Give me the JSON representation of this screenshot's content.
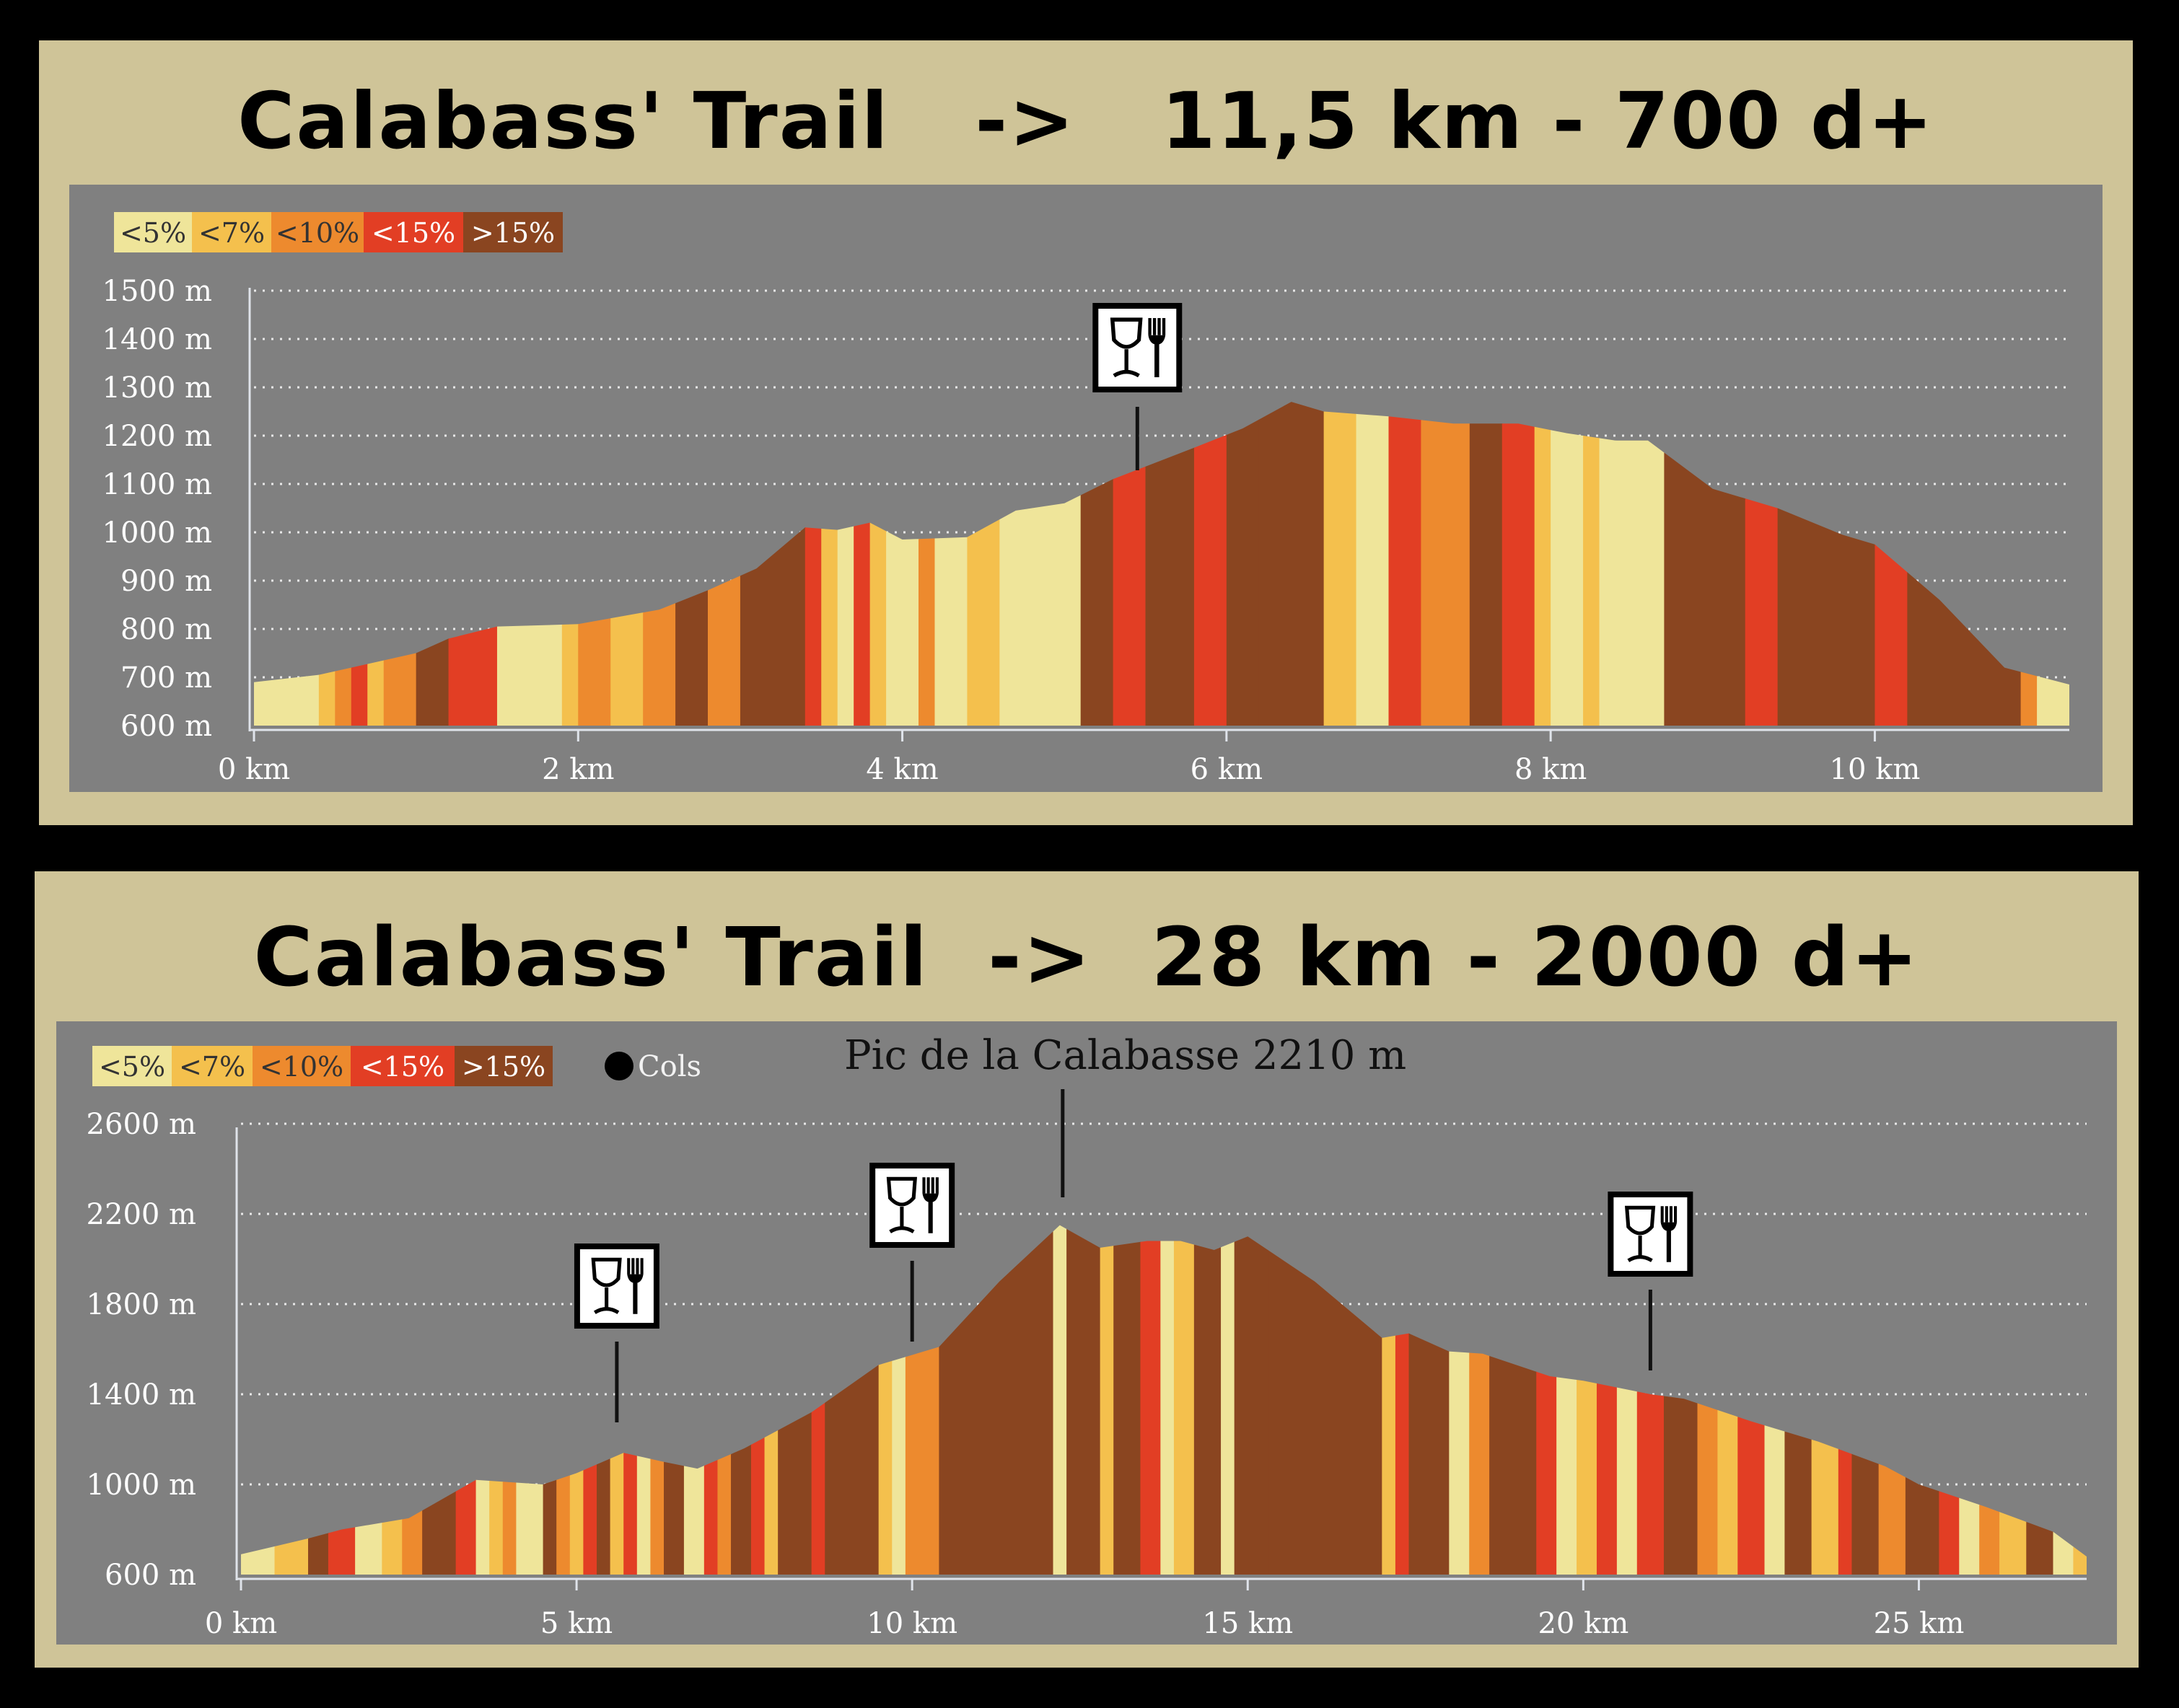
{
  "colors": {
    "lt5": "#efe59a",
    "lt7": "#f4c04d",
    "lt10": "#ed8a2e",
    "lt15": "#e23e24",
    "gt15": "#8a4520",
    "plot_bg": "#808080",
    "frame": "#cfc498"
  },
  "charts": [
    {
      "title": "Calabass' Trail   ->   11,5 km - 700 d+",
      "legend": [
        "<5%",
        "<7%",
        "<10%",
        "<15%",
        ">15%"
      ],
      "cols_label": "",
      "peak_label": "",
      "chart_data": {
        "type": "area",
        "x_unit": "km",
        "xlim": [
          0,
          11.2
        ],
        "ylim": [
          600,
          1500
        ],
        "x_ticks": [
          0,
          2,
          4,
          6,
          8,
          10
        ],
        "x_tick_labels": [
          "0 km",
          "2 km",
          "4 km",
          "6 km",
          "8 km",
          "10 km"
        ],
        "y_ticks": [
          600,
          700,
          800,
          900,
          1000,
          1100,
          1200,
          1300,
          1400,
          1500
        ],
        "y_tick_labels": [
          "600 m",
          "700 m",
          "800 m",
          "900 m",
          "1000 m",
          "1100 m",
          "1200 m",
          "1300 m",
          "1400 m",
          "1500 m"
        ],
        "grid": true,
        "profile": [
          [
            0,
            690
          ],
          [
            0.4,
            705
          ],
          [
            0.6,
            720
          ],
          [
            1.0,
            750
          ],
          [
            1.2,
            780
          ],
          [
            1.5,
            805
          ],
          [
            2.0,
            810
          ],
          [
            2.5,
            840
          ],
          [
            2.8,
            880
          ],
          [
            3.1,
            925
          ],
          [
            3.4,
            1010
          ],
          [
            3.6,
            1005
          ],
          [
            3.8,
            1020
          ],
          [
            4.0,
            985
          ],
          [
            4.4,
            990
          ],
          [
            4.7,
            1045
          ],
          [
            5.0,
            1060
          ],
          [
            5.3,
            1110
          ],
          [
            5.8,
            1175
          ],
          [
            6.1,
            1215
          ],
          [
            6.4,
            1270
          ],
          [
            6.6,
            1250
          ],
          [
            7.0,
            1240
          ],
          [
            7.4,
            1225
          ],
          [
            7.8,
            1225
          ],
          [
            8.1,
            1205
          ],
          [
            8.4,
            1190
          ],
          [
            8.6,
            1190
          ],
          [
            9.0,
            1090
          ],
          [
            9.4,
            1050
          ],
          [
            9.8,
            995
          ],
          [
            10.0,
            975
          ],
          [
            10.4,
            860
          ],
          [
            10.8,
            720
          ],
          [
            11.2,
            685
          ]
        ],
        "slope_segments": [
          [
            0,
            0.4,
            0
          ],
          [
            0.4,
            0.5,
            1
          ],
          [
            0.5,
            0.6,
            2
          ],
          [
            0.6,
            0.7,
            3
          ],
          [
            0.7,
            0.8,
            1
          ],
          [
            0.8,
            1.0,
            2
          ],
          [
            1.0,
            1.2,
            4
          ],
          [
            1.2,
            1.5,
            3
          ],
          [
            1.5,
            1.9,
            0
          ],
          [
            1.9,
            2.0,
            1
          ],
          [
            2.0,
            2.2,
            2
          ],
          [
            2.2,
            2.4,
            1
          ],
          [
            2.4,
            2.6,
            2
          ],
          [
            2.6,
            2.8,
            4
          ],
          [
            2.8,
            3.0,
            2
          ],
          [
            3.0,
            3.4,
            4
          ],
          [
            3.4,
            3.5,
            3
          ],
          [
            3.5,
            3.6,
            1
          ],
          [
            3.6,
            3.7,
            0
          ],
          [
            3.7,
            3.8,
            3
          ],
          [
            3.8,
            3.9,
            1
          ],
          [
            3.9,
            4.1,
            0
          ],
          [
            4.1,
            4.2,
            2
          ],
          [
            4.2,
            4.4,
            0
          ],
          [
            4.4,
            4.6,
            1
          ],
          [
            4.6,
            4.8,
            0
          ],
          [
            4.8,
            5.1,
            0
          ],
          [
            5.1,
            5.3,
            4
          ],
          [
            5.3,
            5.5,
            3
          ],
          [
            5.5,
            5.8,
            4
          ],
          [
            5.8,
            6.0,
            3
          ],
          [
            6.0,
            6.2,
            4
          ],
          [
            6.2,
            6.6,
            4
          ],
          [
            6.6,
            6.8,
            1
          ],
          [
            6.8,
            7.0,
            0
          ],
          [
            7.0,
            7.2,
            3
          ],
          [
            7.2,
            7.5,
            2
          ],
          [
            7.5,
            7.7,
            4
          ],
          [
            7.7,
            7.9,
            3
          ],
          [
            7.9,
            8.0,
            1
          ],
          [
            8.0,
            8.2,
            0
          ],
          [
            8.2,
            8.3,
            1
          ],
          [
            8.3,
            8.4,
            0
          ],
          [
            8.4,
            8.7,
            0
          ],
          [
            8.7,
            9.2,
            4
          ],
          [
            9.2,
            9.4,
            3
          ],
          [
            9.4,
            10.0,
            4
          ],
          [
            10.0,
            10.2,
            3
          ],
          [
            10.2,
            10.9,
            4
          ],
          [
            10.9,
            11.0,
            2
          ],
          [
            11.0,
            11.2,
            0
          ]
        ],
        "food_points": [
          5.45
        ]
      }
    },
    {
      "title": "Calabass' Trail  ->  28 km - 2000 d+",
      "legend": [
        "<5%",
        "<7%",
        "<10%",
        "<15%",
        ">15%"
      ],
      "cols_label": "Cols",
      "peak_label": "Pic de la Calabasse 2210 m",
      "chart_data": {
        "type": "area",
        "x_unit": "km",
        "xlim": [
          0,
          27.5
        ],
        "ylim": [
          600,
          2600
        ],
        "x_ticks": [
          0,
          5,
          10,
          15,
          20,
          25
        ],
        "x_tick_labels": [
          "0 km",
          "5 km",
          "10 km",
          "15 km",
          "20 km",
          "25 km"
        ],
        "y_ticks": [
          600,
          1000,
          1400,
          1800,
          2200,
          2600
        ],
        "y_tick_labels": [
          "600 m",
          "1000 m",
          "1400 m",
          "1800 m",
          "2200 m",
          "2600 m"
        ],
        "grid": true,
        "profile": [
          [
            0,
            690
          ],
          [
            1.0,
            760
          ],
          [
            1.5,
            800
          ],
          [
            2.5,
            850
          ],
          [
            3.5,
            1020
          ],
          [
            4.5,
            1000
          ],
          [
            5.0,
            1050
          ],
          [
            5.7,
            1140
          ],
          [
            6.3,
            1100
          ],
          [
            6.8,
            1070
          ],
          [
            7.5,
            1160
          ],
          [
            8.5,
            1320
          ],
          [
            9.5,
            1530
          ],
          [
            10.4,
            1610
          ],
          [
            11.3,
            1900
          ],
          [
            12.2,
            2150
          ],
          [
            12.8,
            2050
          ],
          [
            13.5,
            2080
          ],
          [
            14.0,
            2080
          ],
          [
            14.5,
            2040
          ],
          [
            15.0,
            2100
          ],
          [
            16.0,
            1900
          ],
          [
            17.0,
            1650
          ],
          [
            17.4,
            1670
          ],
          [
            18.0,
            1590
          ],
          [
            18.5,
            1580
          ],
          [
            19.5,
            1480
          ],
          [
            20.0,
            1460
          ],
          [
            21.0,
            1400
          ],
          [
            21.5,
            1380
          ],
          [
            22.5,
            1280
          ],
          [
            23.5,
            1190
          ],
          [
            24.5,
            1080
          ],
          [
            25.0,
            1000
          ],
          [
            26.0,
            900
          ],
          [
            27.0,
            790
          ],
          [
            27.5,
            680
          ]
        ],
        "slope_segments": [
          [
            0,
            0.5,
            0
          ],
          [
            0.5,
            1.0,
            1
          ],
          [
            1.0,
            1.3,
            4
          ],
          [
            1.3,
            1.7,
            3
          ],
          [
            1.7,
            2.1,
            0
          ],
          [
            2.1,
            2.4,
            1
          ],
          [
            2.4,
            2.7,
            2
          ],
          [
            2.7,
            3.2,
            4
          ],
          [
            3.2,
            3.5,
            3
          ],
          [
            3.5,
            3.7,
            0
          ],
          [
            3.7,
            3.9,
            1
          ],
          [
            3.9,
            4.1,
            2
          ],
          [
            4.1,
            4.5,
            0
          ],
          [
            4.5,
            4.7,
            4
          ],
          [
            4.7,
            4.9,
            2
          ],
          [
            4.9,
            5.1,
            1
          ],
          [
            5.1,
            5.3,
            3
          ],
          [
            5.3,
            5.5,
            4
          ],
          [
            5.5,
            5.7,
            1
          ],
          [
            5.7,
            5.9,
            3
          ],
          [
            5.9,
            6.1,
            0
          ],
          [
            6.1,
            6.3,
            2
          ],
          [
            6.3,
            6.6,
            4
          ],
          [
            6.6,
            6.9,
            0
          ],
          [
            6.9,
            7.1,
            3
          ],
          [
            7.1,
            7.3,
            2
          ],
          [
            7.3,
            7.6,
            4
          ],
          [
            7.6,
            7.8,
            3
          ],
          [
            7.8,
            8.0,
            1
          ],
          [
            8.0,
            8.5,
            4
          ],
          [
            8.5,
            8.7,
            3
          ],
          [
            8.7,
            9.5,
            4
          ],
          [
            9.5,
            9.7,
            1
          ],
          [
            9.7,
            9.9,
            0
          ],
          [
            9.9,
            10.4,
            2
          ],
          [
            10.4,
            12.1,
            4
          ],
          [
            12.1,
            12.3,
            0
          ],
          [
            12.3,
            12.8,
            4
          ],
          [
            12.8,
            13.0,
            1
          ],
          [
            13.0,
            13.4,
            4
          ],
          [
            13.4,
            13.7,
            3
          ],
          [
            13.7,
            13.9,
            0
          ],
          [
            13.9,
            14.2,
            1
          ],
          [
            14.2,
            14.6,
            4
          ],
          [
            14.6,
            14.8,
            0
          ],
          [
            14.8,
            15.3,
            4
          ],
          [
            15.3,
            17.0,
            4
          ],
          [
            17.0,
            17.2,
            1
          ],
          [
            17.2,
            17.4,
            3
          ],
          [
            17.4,
            18.0,
            4
          ],
          [
            18.0,
            18.3,
            0
          ],
          [
            18.3,
            18.6,
            2
          ],
          [
            18.6,
            19.3,
            4
          ],
          [
            19.3,
            19.6,
            3
          ],
          [
            19.6,
            19.9,
            0
          ],
          [
            19.9,
            20.2,
            1
          ],
          [
            20.2,
            20.5,
            3
          ],
          [
            20.5,
            20.8,
            0
          ],
          [
            20.8,
            21.2,
            3
          ],
          [
            21.2,
            21.7,
            4
          ],
          [
            21.7,
            22.0,
            2
          ],
          [
            22.0,
            22.3,
            1
          ],
          [
            22.3,
            22.7,
            3
          ],
          [
            22.7,
            23.0,
            0
          ],
          [
            23.0,
            23.4,
            4
          ],
          [
            23.4,
            23.8,
            1
          ],
          [
            23.8,
            24.0,
            3
          ],
          [
            24.0,
            24.4,
            4
          ],
          [
            24.4,
            24.8,
            2
          ],
          [
            24.8,
            25.3,
            4
          ],
          [
            25.3,
            25.6,
            3
          ],
          [
            25.6,
            25.9,
            0
          ],
          [
            25.9,
            26.2,
            2
          ],
          [
            26.2,
            26.6,
            1
          ],
          [
            26.6,
            27.0,
            4
          ],
          [
            27.0,
            27.3,
            0
          ],
          [
            27.3,
            27.5,
            1
          ]
        ],
        "food_points": [
          5.6,
          10.0,
          21.0
        ],
        "peak_x": 12.2
      }
    }
  ]
}
